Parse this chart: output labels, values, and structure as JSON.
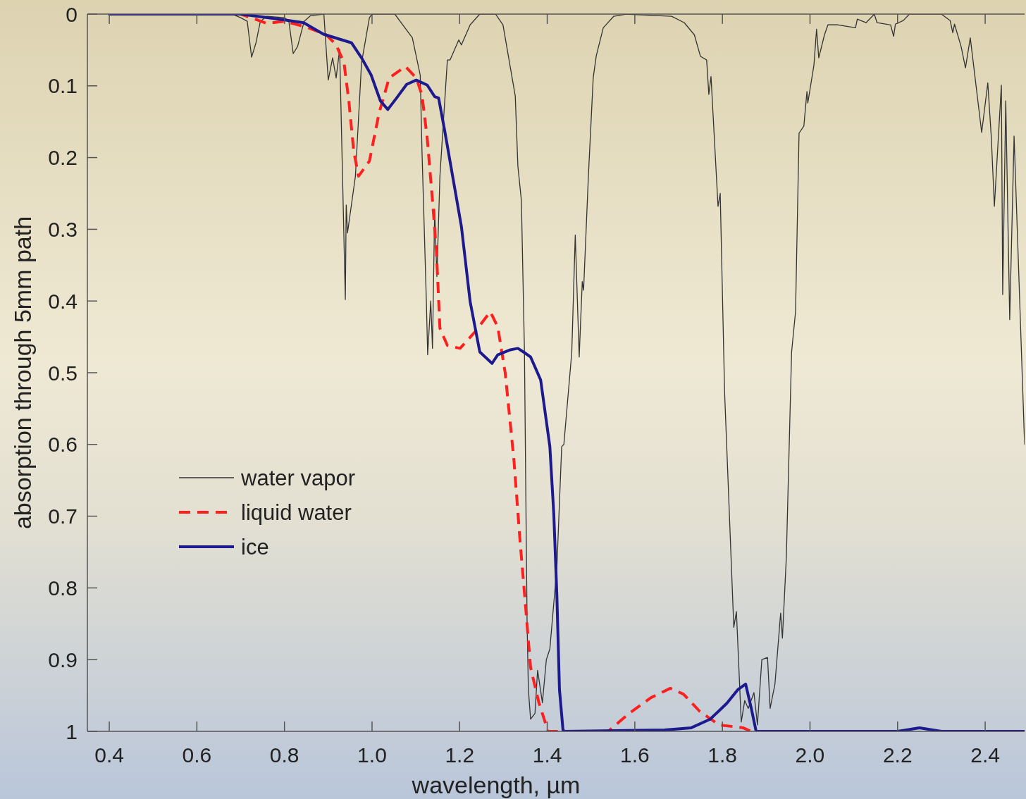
{
  "chart_data": {
    "type": "line",
    "xlabel": "wavelength, µm",
    "ylabel": "absorption through 5mm path",
    "xlim": [
      0.35,
      2.49
    ],
    "ylim": [
      1,
      0
    ],
    "xticks": [
      0.4,
      0.6,
      0.8,
      {
        "value": 1,
        "label": "1.0"
      },
      1.2,
      1.4,
      1.6,
      1.8,
      {
        "value": 2,
        "label": "2.0"
      },
      2.2,
      2.4
    ],
    "yticks": [
      0,
      0.1,
      0.2,
      0.3,
      0.4,
      0.5,
      0.6,
      0.7,
      0.8,
      0.9,
      1
    ],
    "grid": false,
    "legend": "bottom left",
    "series": [
      {
        "name": "water vapor",
        "color": "#333333",
        "line_style": "solid",
        "x": [
          0.4,
          0.68,
          0.7,
          0.715,
          0.725,
          0.735,
          0.745,
          0.76,
          0.8,
          0.81,
          0.82,
          0.83,
          0.845,
          0.86,
          0.89,
          0.9,
          0.91,
          0.918,
          0.926,
          0.939,
          0.941,
          0.944,
          0.962,
          0.976,
          0.994,
          1.0,
          1.052,
          1.092,
          1.11,
          1.114,
          1.124,
          1.127,
          1.134,
          1.138,
          1.143,
          1.148,
          1.155,
          1.172,
          1.178,
          1.198,
          1.204,
          1.224,
          1.246,
          1.282,
          1.299,
          1.327,
          1.333,
          1.341,
          1.348,
          1.354,
          1.357,
          1.362,
          1.372,
          1.378,
          1.389,
          1.398,
          1.406,
          1.422,
          1.433,
          1.438,
          1.456,
          1.464,
          1.473,
          1.48,
          1.483,
          1.494,
          1.505,
          1.512,
          1.528,
          1.552,
          1.58,
          1.684,
          1.713,
          1.736,
          1.75,
          1.764,
          1.769,
          1.774,
          1.79,
          1.795,
          1.805,
          1.826,
          1.832,
          1.843,
          1.851,
          1.859,
          1.872,
          1.88,
          1.89,
          1.903,
          1.909,
          1.92,
          1.933,
          1.937,
          1.946,
          1.958,
          1.967,
          1.975,
          1.986,
          1.993,
          1.995,
          2.009,
          2.015,
          2.02,
          2.033,
          2.041,
          2.064,
          2.104,
          2.108,
          2.128,
          2.147,
          2.153,
          2.184,
          2.191,
          2.195,
          2.213,
          2.227,
          2.3,
          2.32,
          2.326,
          2.33,
          2.345,
          2.355,
          2.366,
          2.378,
          2.392,
          2.406,
          2.414,
          2.421,
          2.437,
          2.44,
          2.447,
          2.456,
          2.466,
          2.49
        ],
        "values": [
          0,
          0,
          0.005,
          0.01,
          0.06,
          0.04,
          0.01,
          0.003,
          0.005,
          0.01,
          0.055,
          0.045,
          0.01,
          0.002,
          0,
          0.092,
          0.061,
          0.089,
          0.049,
          0.398,
          0.266,
          0.305,
          0.226,
          0.068,
          0.005,
          0,
          0,
          0.033,
          0.085,
          0.19,
          0.4,
          0.475,
          0.4,
          0.466,
          0.272,
          0.366,
          0.226,
          0.064,
          0.064,
          0.036,
          0.043,
          0.015,
          0,
          0,
          0.015,
          0.114,
          0.212,
          0.26,
          0.47,
          0.848,
          0.942,
          0.983,
          0.975,
          0.915,
          0.96,
          0.9,
          0.885,
          0.772,
          0.603,
          0.6,
          0.472,
          0.308,
          0.478,
          0.373,
          0.385,
          0.226,
          0.089,
          0.058,
          0.019,
          0.003,
          0,
          0.003,
          0.012,
          0.029,
          0.059,
          0.064,
          0.112,
          0.087,
          0.268,
          0.25,
          0.527,
          0.855,
          0.833,
          0.987,
          0.957,
          0.968,
          0.946,
          0.991,
          0.9,
          0.897,
          0.968,
          0.934,
          0.835,
          0.87,
          0.757,
          0.471,
          0.415,
          0.166,
          0.156,
          0.108,
          0.124,
          0.071,
          0.021,
          0.061,
          0.029,
          0.015,
          0.015,
          0.019,
          0.007,
          0.012,
          0,
          0.012,
          0.015,
          0.031,
          0.014,
          0.009,
          0,
          0,
          0.009,
          0.026,
          0.014,
          0.045,
          0.075,
          0.033,
          0.094,
          0.165,
          0.096,
          0.172,
          0.268,
          0.099,
          0.391,
          0.121,
          0.426,
          0.17,
          0.6
        ]
      },
      {
        "name": "liquid water",
        "color": "#ff1f1f",
        "line_style": "dashed",
        "x": [
          0.4,
          0.7,
          0.76,
          0.8,
          0.85,
          0.896,
          0.918,
          0.936,
          0.947,
          0.958,
          0.969,
          0.994,
          1.016,
          1.039,
          1.076,
          1.101,
          1.114,
          1.126,
          1.138,
          1.147,
          1.155,
          1.172,
          1.201,
          1.235,
          1.27,
          1.287,
          1.304,
          1.324,
          1.338,
          1.351,
          1.362,
          1.381,
          1.402,
          1.539,
          1.587,
          1.637,
          1.681,
          1.711,
          1.748,
          1.792,
          1.847,
          1.866
        ],
        "values": [
          0,
          0,
          0.013,
          0.01,
          0.018,
          0.029,
          0.043,
          0.068,
          0.121,
          0.19,
          0.226,
          0.205,
          0.138,
          0.089,
          0.073,
          0.089,
          0.113,
          0.173,
          0.26,
          0.331,
          0.438,
          0.462,
          0.466,
          0.443,
          0.415,
          0.436,
          0.5,
          0.622,
          0.735,
          0.829,
          0.911,
          0.96,
          1,
          1,
          0.975,
          0.953,
          0.94,
          0.948,
          0.972,
          0.991,
          0.995,
          1
        ]
      },
      {
        "name": "ice",
        "color": "#1c1a8e",
        "line_style": "solid",
        "x": [
          0.4,
          0.7,
          0.8,
          0.844,
          0.889,
          0.953,
          0.976,
          0.998,
          1.019,
          1.036,
          1.056,
          1.079,
          1.101,
          1.126,
          1.143,
          1.152,
          1.166,
          1.204,
          1.224,
          1.246,
          1.274,
          1.287,
          1.316,
          1.333,
          1.348,
          1.362,
          1.385,
          1.406,
          1.415,
          1.422,
          1.428,
          1.436,
          1.44,
          1.668,
          1.729,
          1.772,
          1.81,
          1.835,
          1.853,
          1.866,
          1.877,
          2.2,
          2.25,
          2.3,
          2.49
        ],
        "values": [
          0,
          0,
          0.008,
          0.012,
          0.028,
          0.04,
          0.061,
          0.085,
          0.121,
          0.133,
          0.117,
          0.098,
          0.092,
          0.099,
          0.115,
          0.117,
          0.163,
          0.296,
          0.401,
          0.471,
          0.487,
          0.475,
          0.468,
          0.466,
          0.472,
          0.478,
          0.51,
          0.603,
          0.697,
          0.81,
          0.942,
          0.998,
          1,
          0.998,
          0.995,
          0.983,
          0.961,
          0.942,
          0.934,
          0.968,
          1,
          1,
          0.995,
          1,
          1
        ]
      }
    ]
  }
}
